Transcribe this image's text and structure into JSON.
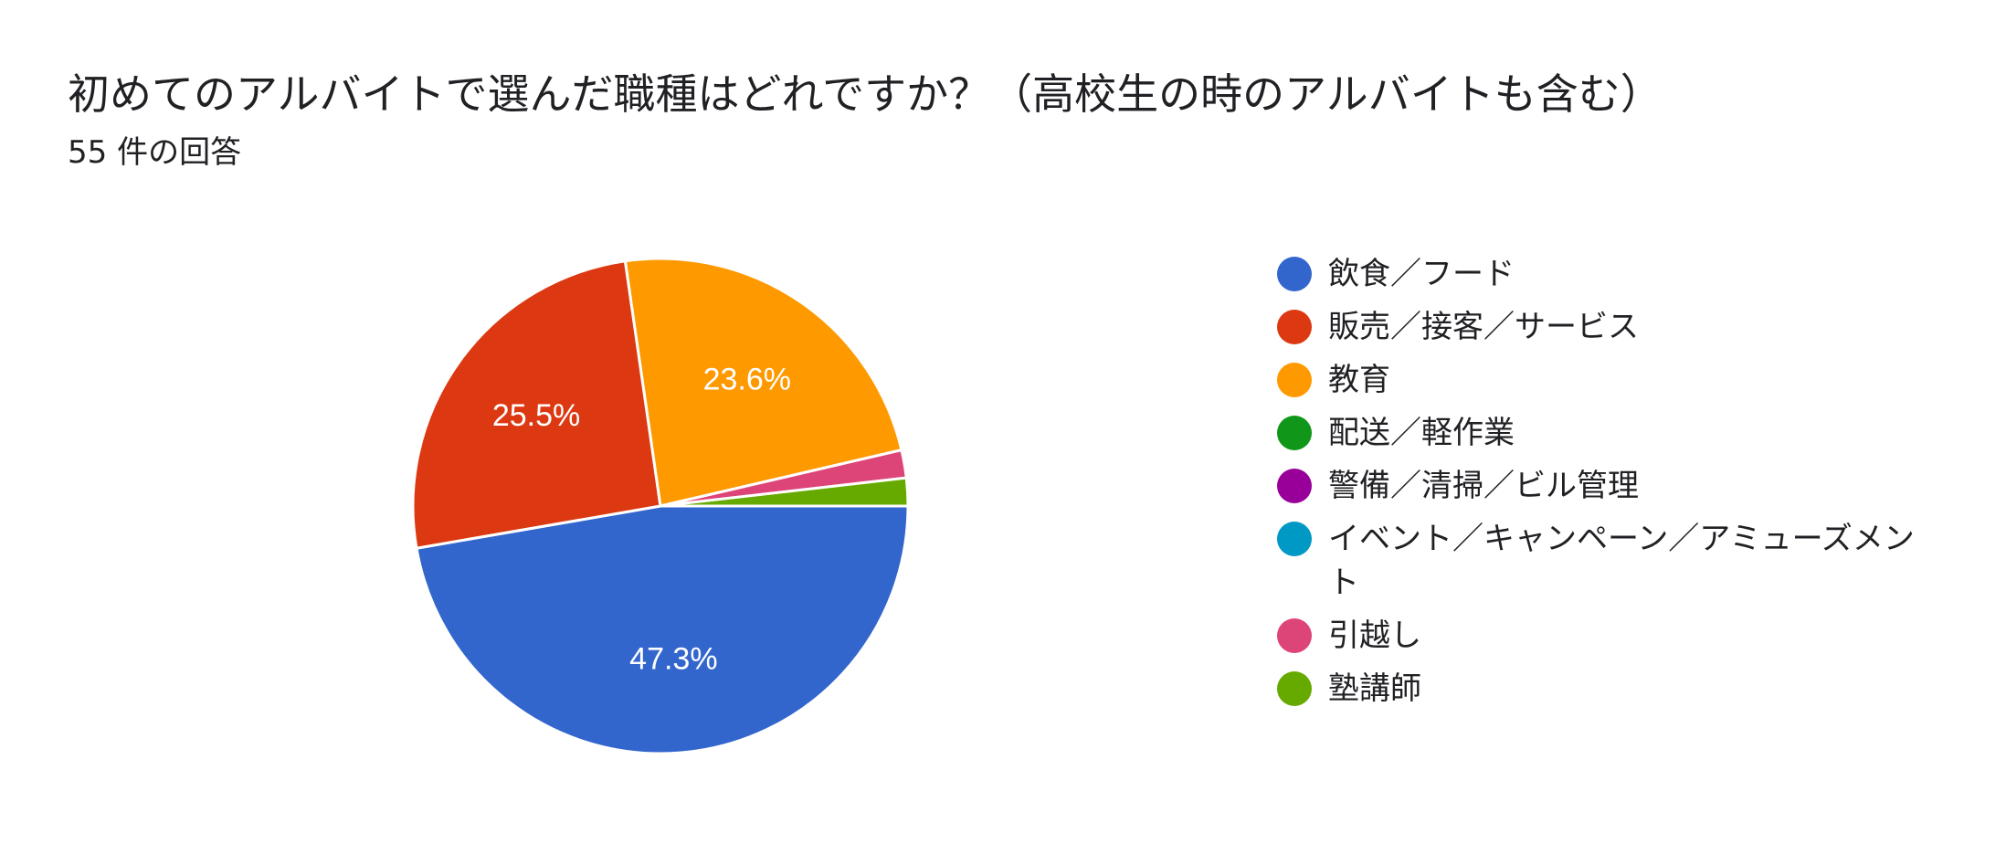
{
  "chart_data": {
    "type": "pie",
    "title": "初めてのアルバイトで選んだ職種はどれですか？（高校生の時のアルバイトも含む）",
    "subtitle": "55 件の回答",
    "legend_position": "right",
    "slices": [
      {
        "label": "飲食／フード",
        "value": 26,
        "percent_label": "47.3%",
        "color": "#3366cc"
      },
      {
        "label": "販売／接客／サービス",
        "value": 14,
        "percent_label": "25.5%",
        "color": "#dc3912"
      },
      {
        "label": "教育",
        "value": 13,
        "percent_label": "23.6%",
        "color": "#ff9900"
      },
      {
        "label": "配送／軽作業",
        "value": 0,
        "percent_label": "",
        "color": "#109618"
      },
      {
        "label": "警備／清掃／ビル管理",
        "value": 0,
        "percent_label": "",
        "color": "#990099"
      },
      {
        "label": "イベント／キャンペーン／アミューズメント",
        "value": 0,
        "percent_label": "",
        "color": "#0099c6"
      },
      {
        "label": "引越し",
        "value": 1,
        "percent_label": "",
        "color": "#dd4477"
      },
      {
        "label": "塾講師",
        "value": 1,
        "percent_label": "",
        "color": "#66aa00"
      }
    ]
  }
}
